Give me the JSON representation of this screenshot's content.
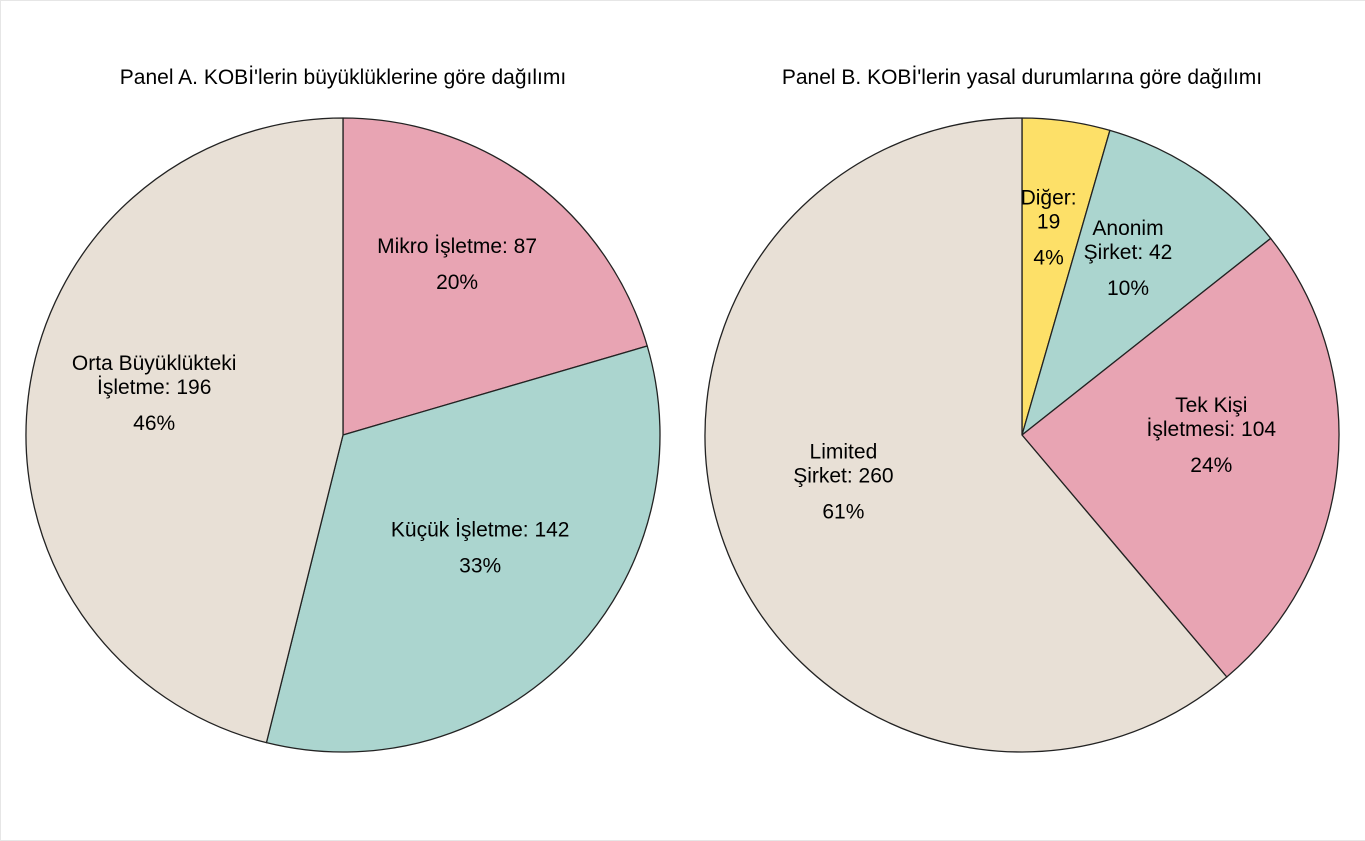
{
  "chart_data": [
    {
      "type": "pie",
      "title": "Panel A. KOBİ'lerin büyüklüklerine göre dağılımı",
      "slices": [
        {
          "label_lines": [
            "Mikro İşletme: 87"
          ],
          "value": 87,
          "percent": "20%",
          "color": "#e8a4b3"
        },
        {
          "label_lines": [
            "Küçük İşletme: 142"
          ],
          "value": 142,
          "percent": "33%",
          "color": "#abd5cf"
        },
        {
          "label_lines": [
            "Orta Büyüklükteki",
            "İşletme: 196"
          ],
          "value": 196,
          "percent": "46%",
          "color": "#e8e0d6"
        }
      ]
    },
    {
      "type": "pie",
      "title": "Panel B. KOBİ'lerin yasal durumlarına göre dağılımı",
      "slices": [
        {
          "label_lines": [
            "Diğer:",
            "19"
          ],
          "value": 19,
          "percent": "4%",
          "color": "#fde068"
        },
        {
          "label_lines": [
            "Anonim",
            "Şirket: 42"
          ],
          "value": 42,
          "percent": "10%",
          "color": "#abd5cf"
        },
        {
          "label_lines": [
            "Tek Kişi",
            "İşletmesi: 104"
          ],
          "value": 104,
          "percent": "24%",
          "color": "#e8a4b3"
        },
        {
          "label_lines": [
            "Limited",
            "Şirket: 260"
          ],
          "value": 260,
          "percent": "61%",
          "color": "#e8e0d6"
        }
      ]
    }
  ]
}
